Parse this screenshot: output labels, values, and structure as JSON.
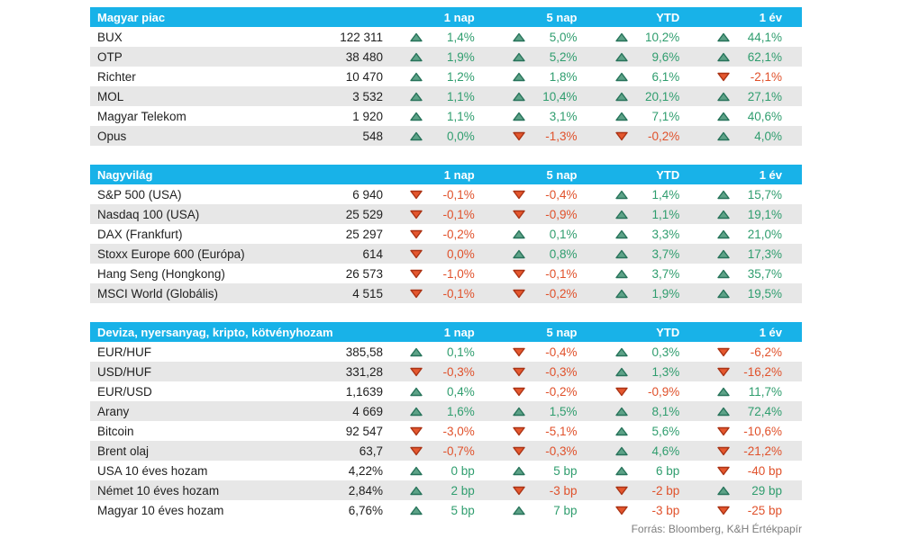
{
  "colors": {
    "header_bg": "#18b2e8",
    "header_text": "#ffffff",
    "row_alt_bg": "#e7e7e7",
    "up_text": "#2f9d6e",
    "down_text": "#e0512b",
    "up_arrow_fill": "#5da287",
    "up_arrow_stroke": "#27735a",
    "down_arrow_fill": "#e4572e",
    "down_arrow_stroke": "#aa3315"
  },
  "footer": {
    "source": "Forrás: Bloomberg, K&H Értékpapír"
  },
  "chart_data": [
    {
      "type": "table",
      "title": "Magyar piac",
      "columns": [
        "1 nap",
        "5 nap",
        "YTD",
        "1 év"
      ],
      "rows": [
        {
          "name": "BUX",
          "value": "122 311",
          "changes": [
            {
              "dir": "up",
              "text": "1,4%"
            },
            {
              "dir": "up",
              "text": "5,0%"
            },
            {
              "dir": "up",
              "text": "10,2%"
            },
            {
              "dir": "up",
              "text": "44,1%"
            }
          ]
        },
        {
          "name": "OTP",
          "value": "38 480",
          "changes": [
            {
              "dir": "up",
              "text": "1,9%"
            },
            {
              "dir": "up",
              "text": "5,2%"
            },
            {
              "dir": "up",
              "text": "9,6%"
            },
            {
              "dir": "up",
              "text": "62,1%"
            }
          ]
        },
        {
          "name": "Richter",
          "value": "10 470",
          "changes": [
            {
              "dir": "up",
              "text": "1,2%"
            },
            {
              "dir": "up",
              "text": "1,8%"
            },
            {
              "dir": "up",
              "text": "6,1%"
            },
            {
              "dir": "down",
              "text": "-2,1%"
            }
          ]
        },
        {
          "name": "MOL",
          "value": "3 532",
          "changes": [
            {
              "dir": "up",
              "text": "1,1%"
            },
            {
              "dir": "up",
              "text": "10,4%"
            },
            {
              "dir": "up",
              "text": "20,1%"
            },
            {
              "dir": "up",
              "text": "27,1%"
            }
          ]
        },
        {
          "name": "Magyar Telekom",
          "value": "1 920",
          "changes": [
            {
              "dir": "up",
              "text": "1,1%"
            },
            {
              "dir": "up",
              "text": "3,1%"
            },
            {
              "dir": "up",
              "text": "7,1%"
            },
            {
              "dir": "up",
              "text": "40,6%"
            }
          ]
        },
        {
          "name": "Opus",
          "value": "548",
          "changes": [
            {
              "dir": "up",
              "text": "0,0%"
            },
            {
              "dir": "down",
              "text": "-1,3%"
            },
            {
              "dir": "down",
              "text": "-0,2%"
            },
            {
              "dir": "up",
              "text": "4,0%"
            }
          ]
        }
      ]
    },
    {
      "type": "table",
      "title": "Nagyvilág",
      "columns": [
        "1 nap",
        "5 nap",
        "YTD",
        "1 év"
      ],
      "rows": [
        {
          "name": "S&P 500 (USA)",
          "value": "6 940",
          "changes": [
            {
              "dir": "down",
              "text": "-0,1%"
            },
            {
              "dir": "down",
              "text": "-0,4%"
            },
            {
              "dir": "up",
              "text": "1,4%"
            },
            {
              "dir": "up",
              "text": "15,7%"
            }
          ]
        },
        {
          "name": "Nasdaq 100 (USA)",
          "value": "25 529",
          "changes": [
            {
              "dir": "down",
              "text": "-0,1%"
            },
            {
              "dir": "down",
              "text": "-0,9%"
            },
            {
              "dir": "up",
              "text": "1,1%"
            },
            {
              "dir": "up",
              "text": "19,1%"
            }
          ]
        },
        {
          "name": "DAX (Frankfurt)",
          "value": "25 297",
          "changes": [
            {
              "dir": "down",
              "text": "-0,2%"
            },
            {
              "dir": "up",
              "text": "0,1%"
            },
            {
              "dir": "up",
              "text": "3,3%"
            },
            {
              "dir": "up",
              "text": "21,0%"
            }
          ]
        },
        {
          "name": "Stoxx Europe 600 (Európa)",
          "value": "614",
          "changes": [
            {
              "dir": "down",
              "text": "0,0%"
            },
            {
              "dir": "up",
              "text": "0,8%"
            },
            {
              "dir": "up",
              "text": "3,7%"
            },
            {
              "dir": "up",
              "text": "17,3%"
            }
          ]
        },
        {
          "name": "Hang Seng (Hongkong)",
          "value": "26 573",
          "changes": [
            {
              "dir": "down",
              "text": "-1,0%"
            },
            {
              "dir": "down",
              "text": "-0,1%"
            },
            {
              "dir": "up",
              "text": "3,7%"
            },
            {
              "dir": "up",
              "text": "35,7%"
            }
          ]
        },
        {
          "name": "MSCI World (Globális)",
          "value": "4 515",
          "changes": [
            {
              "dir": "down",
              "text": "-0,1%"
            },
            {
              "dir": "down",
              "text": "-0,2%"
            },
            {
              "dir": "up",
              "text": "1,9%"
            },
            {
              "dir": "up",
              "text": "19,5%"
            }
          ]
        }
      ]
    },
    {
      "type": "table",
      "title": "Deviza, nyersanyag, kripto, kötvényhozam",
      "columns": [
        "1 nap",
        "5 nap",
        "YTD",
        "1 év"
      ],
      "rows": [
        {
          "name": "EUR/HUF",
          "value": "385,58",
          "changes": [
            {
              "dir": "up",
              "text": "0,1%"
            },
            {
              "dir": "down",
              "text": "-0,4%"
            },
            {
              "dir": "up",
              "text": "0,3%"
            },
            {
              "dir": "down",
              "text": "-6,2%"
            }
          ]
        },
        {
          "name": "USD/HUF",
          "value": "331,28",
          "changes": [
            {
              "dir": "down",
              "text": "-0,3%"
            },
            {
              "dir": "down",
              "text": "-0,3%"
            },
            {
              "dir": "up",
              "text": "1,3%"
            },
            {
              "dir": "down",
              "text": "-16,2%"
            }
          ]
        },
        {
          "name": "EUR/USD",
          "value": "1,1639",
          "changes": [
            {
              "dir": "up",
              "text": "0,4%"
            },
            {
              "dir": "down",
              "text": "-0,2%"
            },
            {
              "dir": "down",
              "text": "-0,9%"
            },
            {
              "dir": "up",
              "text": "11,7%"
            }
          ]
        },
        {
          "name": "Arany",
          "value": "4 669",
          "changes": [
            {
              "dir": "up",
              "text": "1,6%"
            },
            {
              "dir": "up",
              "text": "1,5%"
            },
            {
              "dir": "up",
              "text": "8,1%"
            },
            {
              "dir": "up",
              "text": "72,4%"
            }
          ]
        },
        {
          "name": "Bitcoin",
          "value": "92 547",
          "changes": [
            {
              "dir": "down",
              "text": "-3,0%"
            },
            {
              "dir": "down",
              "text": "-5,1%"
            },
            {
              "dir": "up",
              "text": "5,6%"
            },
            {
              "dir": "down",
              "text": "-10,6%"
            }
          ]
        },
        {
          "name": "Brent olaj",
          "value": "63,7",
          "changes": [
            {
              "dir": "down",
              "text": "-0,7%"
            },
            {
              "dir": "down",
              "text": "-0,3%"
            },
            {
              "dir": "up",
              "text": "4,6%"
            },
            {
              "dir": "down",
              "text": "-21,2%"
            }
          ]
        },
        {
          "name": "USA 10 éves hozam",
          "value": "4,22%",
          "changes": [
            {
              "dir": "up",
              "text": "0 bp"
            },
            {
              "dir": "up",
              "text": "5 bp"
            },
            {
              "dir": "up",
              "text": "6 bp"
            },
            {
              "dir": "down",
              "text": "-40 bp"
            }
          ]
        },
        {
          "name": "Német 10 éves hozam",
          "value": "2,84%",
          "changes": [
            {
              "dir": "up",
              "text": "2 bp"
            },
            {
              "dir": "down",
              "text": "-3 bp"
            },
            {
              "dir": "down",
              "text": "-2 bp"
            },
            {
              "dir": "up",
              "text": "29 bp"
            }
          ]
        },
        {
          "name": "Magyar 10 éves hozam",
          "value": "6,76%",
          "changes": [
            {
              "dir": "up",
              "text": "5 bp"
            },
            {
              "dir": "up",
              "text": "7 bp"
            },
            {
              "dir": "down",
              "text": "-3 bp"
            },
            {
              "dir": "down",
              "text": "-25 bp"
            }
          ]
        }
      ]
    }
  ]
}
